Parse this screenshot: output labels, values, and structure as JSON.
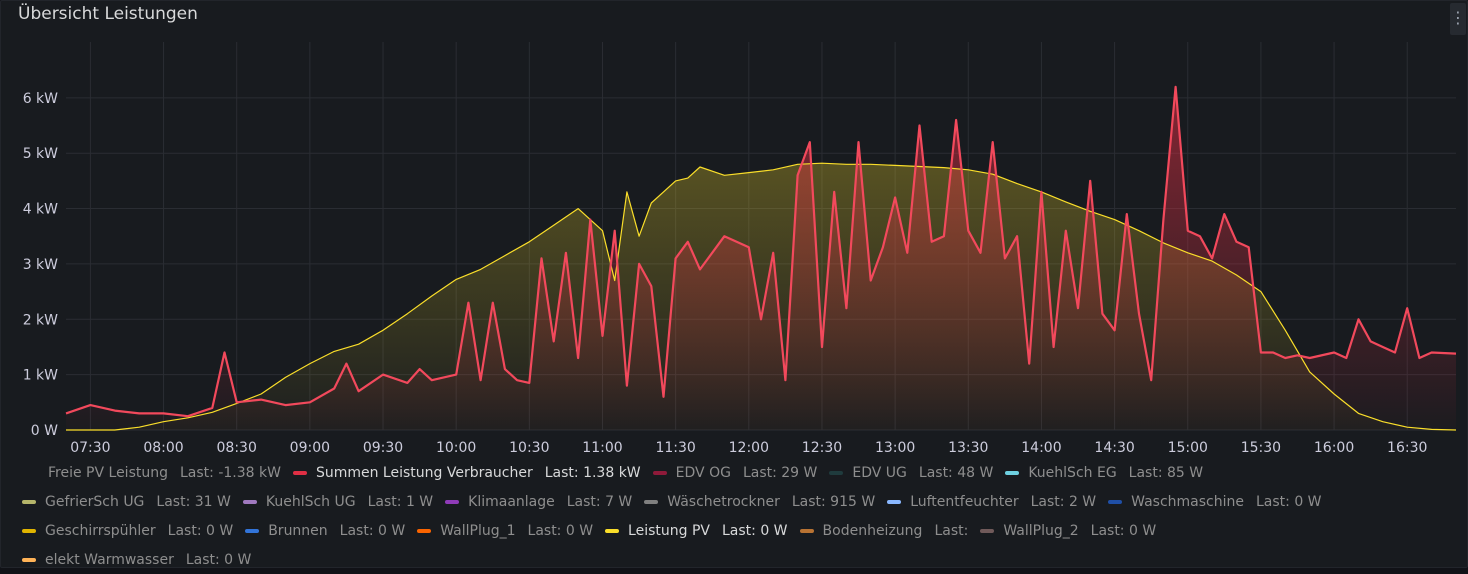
{
  "panel": {
    "title": "Übersicht Leistungen",
    "menu_glyph": "⋮"
  },
  "chart_data": {
    "type": "area",
    "title": "Übersicht Leistungen",
    "ylim": [
      0,
      6.9
    ],
    "yunit": "kW",
    "yticks": [
      "0 W",
      "1 kW",
      "2 kW",
      "3 kW",
      "4 kW",
      "5 kW",
      "6 kW"
    ],
    "xticks": [
      "07:30",
      "08:00",
      "08:30",
      "09:00",
      "09:30",
      "10:00",
      "10:30",
      "11:00",
      "11:30",
      "12:00",
      "12:30",
      "13:00",
      "13:30",
      "14:00",
      "14:30",
      "15:00",
      "15:30",
      "16:00",
      "16:30"
    ],
    "grid": true,
    "legend_position": "bottom",
    "series": [
      {
        "name": "Leistung PV",
        "color": "#fade2a",
        "points": [
          [
            "07:20",
            0
          ],
          [
            "07:40",
            0
          ],
          [
            "07:50",
            0.05
          ],
          [
            "08:00",
            0.15
          ],
          [
            "08:10",
            0.22
          ],
          [
            "08:20",
            0.32
          ],
          [
            "08:30",
            0.48
          ],
          [
            "08:40",
            0.65
          ],
          [
            "08:50",
            0.95
          ],
          [
            "09:00",
            1.2
          ],
          [
            "09:10",
            1.42
          ],
          [
            "09:20",
            1.55
          ],
          [
            "09:30",
            1.8
          ],
          [
            "09:40",
            2.1
          ],
          [
            "09:50",
            2.42
          ],
          [
            "10:00",
            2.72
          ],
          [
            "10:10",
            2.9
          ],
          [
            "10:20",
            3.15
          ],
          [
            "10:30",
            3.4
          ],
          [
            "10:40",
            3.7
          ],
          [
            "10:50",
            4.0
          ],
          [
            "11:00",
            3.6
          ],
          [
            "11:05",
            2.7
          ],
          [
            "11:10",
            4.3
          ],
          [
            "11:15",
            3.5
          ],
          [
            "11:20",
            4.1
          ],
          [
            "11:25",
            4.3
          ],
          [
            "11:30",
            4.5
          ],
          [
            "11:35",
            4.55
          ],
          [
            "11:40",
            4.75
          ],
          [
            "11:50",
            4.6
          ],
          [
            "12:00",
            4.65
          ],
          [
            "12:10",
            4.7
          ],
          [
            "12:20",
            4.8
          ],
          [
            "12:30",
            4.82
          ],
          [
            "12:40",
            4.8
          ],
          [
            "12:50",
            4.8
          ],
          [
            "13:00",
            4.78
          ],
          [
            "13:10",
            4.76
          ],
          [
            "13:20",
            4.74
          ],
          [
            "13:30",
            4.7
          ],
          [
            "13:40",
            4.62
          ],
          [
            "13:50",
            4.45
          ],
          [
            "14:00",
            4.3
          ],
          [
            "14:10",
            4.12
          ],
          [
            "14:20",
            3.95
          ],
          [
            "14:30",
            3.8
          ],
          [
            "14:40",
            3.6
          ],
          [
            "14:50",
            3.38
          ],
          [
            "15:00",
            3.2
          ],
          [
            "15:10",
            3.05
          ],
          [
            "15:20",
            2.8
          ],
          [
            "15:30",
            2.5
          ],
          [
            "15:40",
            1.8
          ],
          [
            "15:50",
            1.05
          ],
          [
            "16:00",
            0.65
          ],
          [
            "16:10",
            0.3
          ],
          [
            "16:20",
            0.15
          ],
          [
            "16:30",
            0.05
          ],
          [
            "16:40",
            0.01
          ],
          [
            "16:50",
            0
          ]
        ]
      },
      {
        "name": "Summen Leistung Verbraucher",
        "color": "#f2495c",
        "points": [
          [
            "07:20",
            0.3
          ],
          [
            "07:30",
            0.45
          ],
          [
            "07:40",
            0.35
          ],
          [
            "07:50",
            0.3
          ],
          [
            "08:00",
            0.3
          ],
          [
            "08:10",
            0.25
          ],
          [
            "08:20",
            0.4
          ],
          [
            "08:25",
            1.4
          ],
          [
            "08:30",
            0.5
          ],
          [
            "08:40",
            0.55
          ],
          [
            "08:50",
            0.45
          ],
          [
            "09:00",
            0.5
          ],
          [
            "09:10",
            0.75
          ],
          [
            "09:15",
            1.2
          ],
          [
            "09:20",
            0.7
          ],
          [
            "09:30",
            1.0
          ],
          [
            "09:40",
            0.85
          ],
          [
            "09:45",
            1.1
          ],
          [
            "09:50",
            0.9
          ],
          [
            "10:00",
            1.0
          ],
          [
            "10:05",
            2.3
          ],
          [
            "10:10",
            0.9
          ],
          [
            "10:15",
            2.3
          ],
          [
            "10:20",
            1.1
          ],
          [
            "10:25",
            0.9
          ],
          [
            "10:30",
            0.85
          ],
          [
            "10:35",
            3.1
          ],
          [
            "10:40",
            1.6
          ],
          [
            "10:45",
            3.2
          ],
          [
            "10:50",
            1.3
          ],
          [
            "10:55",
            3.8
          ],
          [
            "11:00",
            1.7
          ],
          [
            "11:05",
            3.6
          ],
          [
            "11:10",
            0.8
          ],
          [
            "11:15",
            3.0
          ],
          [
            "11:20",
            2.6
          ],
          [
            "11:25",
            0.6
          ],
          [
            "11:30",
            3.1
          ],
          [
            "11:35",
            3.4
          ],
          [
            "11:40",
            2.9
          ],
          [
            "11:50",
            3.5
          ],
          [
            "12:00",
            3.3
          ],
          [
            "12:05",
            2.0
          ],
          [
            "12:10",
            3.2
          ],
          [
            "12:15",
            0.9
          ],
          [
            "12:20",
            4.6
          ],
          [
            "12:25",
            5.2
          ],
          [
            "12:30",
            1.5
          ],
          [
            "12:35",
            4.3
          ],
          [
            "12:40",
            2.2
          ],
          [
            "12:45",
            5.2
          ],
          [
            "12:50",
            2.7
          ],
          [
            "12:55",
            3.3
          ],
          [
            "13:00",
            4.2
          ],
          [
            "13:05",
            3.2
          ],
          [
            "13:10",
            5.5
          ],
          [
            "13:15",
            3.4
          ],
          [
            "13:20",
            3.5
          ],
          [
            "13:25",
            5.6
          ],
          [
            "13:30",
            3.6
          ],
          [
            "13:35",
            3.2
          ],
          [
            "13:40",
            5.2
          ],
          [
            "13:45",
            3.1
          ],
          [
            "13:50",
            3.5
          ],
          [
            "13:55",
            1.2
          ],
          [
            "14:00",
            4.3
          ],
          [
            "14:05",
            1.5
          ],
          [
            "14:10",
            3.6
          ],
          [
            "14:15",
            2.2
          ],
          [
            "14:20",
            4.5
          ],
          [
            "14:25",
            2.1
          ],
          [
            "14:30",
            1.8
          ],
          [
            "14:35",
            3.9
          ],
          [
            "14:40",
            2.1
          ],
          [
            "14:45",
            0.9
          ],
          [
            "14:50",
            3.8
          ],
          [
            "14:55",
            6.2
          ],
          [
            "15:00",
            3.6
          ],
          [
            "15:05",
            3.5
          ],
          [
            "15:10",
            3.1
          ],
          [
            "15:15",
            3.9
          ],
          [
            "15:20",
            3.4
          ],
          [
            "15:25",
            3.3
          ],
          [
            "15:30",
            1.4
          ],
          [
            "15:35",
            1.4
          ],
          [
            "15:40",
            1.3
          ],
          [
            "15:45",
            1.35
          ],
          [
            "15:50",
            1.3
          ],
          [
            "16:00",
            1.4
          ],
          [
            "16:05",
            1.3
          ],
          [
            "16:10",
            2.0
          ],
          [
            "16:15",
            1.6
          ],
          [
            "16:20",
            1.5
          ],
          [
            "16:25",
            1.4
          ],
          [
            "16:30",
            2.2
          ],
          [
            "16:35",
            1.3
          ],
          [
            "16:40",
            1.4
          ],
          [
            "16:50",
            1.38
          ]
        ]
      }
    ]
  },
  "legend": {
    "rows": [
      [
        {
          "name": "Freie PV Leistung",
          "last": "Last: -1.38 kW",
          "color": "transparent",
          "active": false
        },
        {
          "name": "Summen Leistung Verbraucher",
          "last": "Last: 1.38 kW",
          "color": "#e02f44",
          "active": true
        },
        {
          "name": "EDV OG",
          "last": "Last: 29 W",
          "color": "#8f1a3a",
          "active": false
        },
        {
          "name": "EDV UG",
          "last": "Last: 48 W",
          "color": "#1f3b3d",
          "active": false
        },
        {
          "name": "KuehlSch EG",
          "last": "Last: 85 W",
          "color": "#6ed0e0",
          "active": false
        }
      ],
      [
        {
          "name": "GefrierSch UG",
          "last": "Last: 31 W",
          "color": "#b5b56a",
          "active": false
        },
        {
          "name": "KuehlSch UG",
          "last": "Last: 1 W",
          "color": "#a079bf",
          "active": false
        },
        {
          "name": "Klimaanlage",
          "last": "Last: 7 W",
          "color": "#8f3bb8",
          "active": false
        },
        {
          "name": "Wäschetrockner",
          "last": "Last: 915 W",
          "color": "#808080",
          "active": false
        },
        {
          "name": "Luftentfeuchter",
          "last": "Last: 2 W",
          "color": "#8ab8ff",
          "active": false
        },
        {
          "name": "Waschmaschine",
          "last": "Last: 0 W",
          "color": "#1f4fa6",
          "active": false
        }
      ],
      [
        {
          "name": "Geschirrspühler",
          "last": "Last: 0 W",
          "color": "#e0b400",
          "active": false
        },
        {
          "name": "Brunnen",
          "last": "Last: 0 W",
          "color": "#3274d9",
          "active": false
        },
        {
          "name": "WallPlug_1",
          "last": "Last: 0 W",
          "color": "#fa6400",
          "active": false
        },
        {
          "name": "Leistung PV",
          "last": "Last: 0 W",
          "color": "#fade2a",
          "active": true
        },
        {
          "name": "Bodenheizung",
          "last": "Last:",
          "color": "#b87333",
          "active": false
        },
        {
          "name": "WallPlug_2",
          "last": "Last: 0 W",
          "color": "#705a5a",
          "active": false
        }
      ],
      [
        {
          "name": "elekt Warmwasser",
          "last": "Last: 0 W",
          "color": "#ffb357",
          "active": false
        }
      ]
    ]
  }
}
